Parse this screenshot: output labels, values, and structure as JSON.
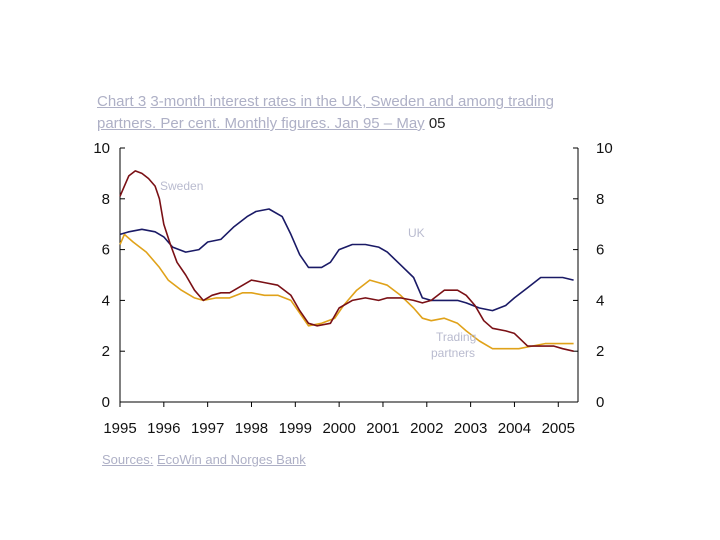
{
  "title": {
    "label": "Chart 3",
    "text": "3-month interest rates in the UK, Sweden and among trading partners. Per cent. Monthly figures. Jan 95 – May",
    "tail": "05"
  },
  "source": {
    "label": "Sources:",
    "text": "EcoWin and Norges Bank"
  },
  "chart_data": {
    "type": "line",
    "title": "3-month interest rates in the UK, Sweden and among trading partners. Per cent. Monthly figures. Jan 95 – May 05",
    "xlabel": "",
    "ylabel": "",
    "ylim": [
      0,
      10
    ],
    "yticks_left": [
      "0",
      "2",
      "4",
      "6",
      "8",
      "10"
    ],
    "yticks_right": [
      "0",
      "2",
      "4",
      "6",
      "8",
      "10"
    ],
    "xticks": [
      "1995",
      "1996",
      "1997",
      "1998",
      "1999",
      "2000",
      "2001",
      "2002",
      "2003",
      "2004",
      "2005"
    ],
    "grid": false,
    "series": [
      {
        "name": "Sweden",
        "color": "#7a1015",
        "points": [
          [
            1995.0,
            8.1
          ],
          [
            1995.1,
            8.5
          ],
          [
            1995.2,
            8.9
          ],
          [
            1995.35,
            9.1
          ],
          [
            1995.5,
            9.0
          ],
          [
            1995.65,
            8.8
          ],
          [
            1995.8,
            8.5
          ],
          [
            1995.9,
            8.0
          ],
          [
            1996.0,
            7.0
          ],
          [
            1996.15,
            6.2
          ],
          [
            1996.3,
            5.5
          ],
          [
            1996.5,
            5.0
          ],
          [
            1996.7,
            4.4
          ],
          [
            1996.9,
            4.0
          ],
          [
            1997.1,
            4.2
          ],
          [
            1997.3,
            4.3
          ],
          [
            1997.5,
            4.3
          ],
          [
            1997.8,
            4.6
          ],
          [
            1998.0,
            4.8
          ],
          [
            1998.3,
            4.7
          ],
          [
            1998.6,
            4.6
          ],
          [
            1998.9,
            4.2
          ],
          [
            1999.1,
            3.6
          ],
          [
            1999.3,
            3.1
          ],
          [
            1999.5,
            3.0
          ],
          [
            1999.8,
            3.1
          ],
          [
            2000.0,
            3.7
          ],
          [
            2000.3,
            4.0
          ],
          [
            2000.6,
            4.1
          ],
          [
            2000.9,
            4.0
          ],
          [
            2001.1,
            4.1
          ],
          [
            2001.4,
            4.1
          ],
          [
            2001.7,
            4.0
          ],
          [
            2001.9,
            3.9
          ],
          [
            2002.1,
            4.0
          ],
          [
            2002.4,
            4.4
          ],
          [
            2002.7,
            4.4
          ],
          [
            2002.9,
            4.2
          ],
          [
            2003.1,
            3.8
          ],
          [
            2003.3,
            3.2
          ],
          [
            2003.5,
            2.9
          ],
          [
            2003.8,
            2.8
          ],
          [
            2004.0,
            2.7
          ],
          [
            2004.3,
            2.2
          ],
          [
            2004.6,
            2.2
          ],
          [
            2004.9,
            2.2
          ],
          [
            2005.1,
            2.1
          ],
          [
            2005.35,
            2.0
          ]
        ]
      },
      {
        "name": "UK",
        "color": "#1a1a66",
        "points": [
          [
            1995.0,
            6.6
          ],
          [
            1995.2,
            6.7
          ],
          [
            1995.5,
            6.8
          ],
          [
            1995.8,
            6.7
          ],
          [
            1996.0,
            6.5
          ],
          [
            1996.2,
            6.1
          ],
          [
            1996.5,
            5.9
          ],
          [
            1996.8,
            6.0
          ],
          [
            1997.0,
            6.3
          ],
          [
            1997.3,
            6.4
          ],
          [
            1997.6,
            6.9
          ],
          [
            1997.9,
            7.3
          ],
          [
            1998.1,
            7.5
          ],
          [
            1998.4,
            7.6
          ],
          [
            1998.7,
            7.3
          ],
          [
            1998.9,
            6.6
          ],
          [
            1999.1,
            5.8
          ],
          [
            1999.3,
            5.3
          ],
          [
            1999.6,
            5.3
          ],
          [
            1999.8,
            5.5
          ],
          [
            2000.0,
            6.0
          ],
          [
            2000.3,
            6.2
          ],
          [
            2000.6,
            6.2
          ],
          [
            2000.9,
            6.1
          ],
          [
            2001.1,
            5.9
          ],
          [
            2001.4,
            5.4
          ],
          [
            2001.7,
            4.9
          ],
          [
            2001.9,
            4.1
          ],
          [
            2002.1,
            4.0
          ],
          [
            2002.4,
            4.0
          ],
          [
            2002.7,
            4.0
          ],
          [
            2002.9,
            3.9
          ],
          [
            2003.2,
            3.7
          ],
          [
            2003.5,
            3.6
          ],
          [
            2003.8,
            3.8
          ],
          [
            2004.0,
            4.1
          ],
          [
            2004.3,
            4.5
          ],
          [
            2004.6,
            4.9
          ],
          [
            2004.9,
            4.9
          ],
          [
            2005.1,
            4.9
          ],
          [
            2005.35,
            4.8
          ]
        ]
      },
      {
        "name": "Trading partners",
        "color": "#e0a21a",
        "points": [
          [
            1995.0,
            6.2
          ],
          [
            1995.1,
            6.6
          ],
          [
            1995.3,
            6.3
          ],
          [
            1995.6,
            5.9
          ],
          [
            1995.9,
            5.3
          ],
          [
            1996.1,
            4.8
          ],
          [
            1996.4,
            4.4
          ],
          [
            1996.7,
            4.1
          ],
          [
            1996.9,
            4.0
          ],
          [
            1997.2,
            4.1
          ],
          [
            1997.5,
            4.1
          ],
          [
            1997.8,
            4.3
          ],
          [
            1998.0,
            4.3
          ],
          [
            1998.3,
            4.2
          ],
          [
            1998.6,
            4.2
          ],
          [
            1998.9,
            4.0
          ],
          [
            1999.1,
            3.5
          ],
          [
            1999.3,
            3.0
          ],
          [
            1999.6,
            3.1
          ],
          [
            1999.9,
            3.3
          ],
          [
            2000.1,
            3.8
          ],
          [
            2000.4,
            4.4
          ],
          [
            2000.7,
            4.8
          ],
          [
            2000.9,
            4.7
          ],
          [
            2001.1,
            4.6
          ],
          [
            2001.4,
            4.2
          ],
          [
            2001.7,
            3.7
          ],
          [
            2001.9,
            3.3
          ],
          [
            2002.1,
            3.2
          ],
          [
            2002.4,
            3.3
          ],
          [
            2002.7,
            3.1
          ],
          [
            2002.9,
            2.8
          ],
          [
            2003.2,
            2.4
          ],
          [
            2003.5,
            2.1
          ],
          [
            2003.8,
            2.1
          ],
          [
            2004.1,
            2.1
          ],
          [
            2004.4,
            2.2
          ],
          [
            2004.7,
            2.3
          ],
          [
            2005.0,
            2.3
          ],
          [
            2005.35,
            2.3
          ]
        ]
      }
    ],
    "labels": [
      {
        "series": "Sweden",
        "text": "Sweden"
      },
      {
        "series": "UK",
        "text": "UK"
      },
      {
        "series": "Trading partners",
        "text": "Trading",
        "text2": "partners"
      }
    ]
  }
}
